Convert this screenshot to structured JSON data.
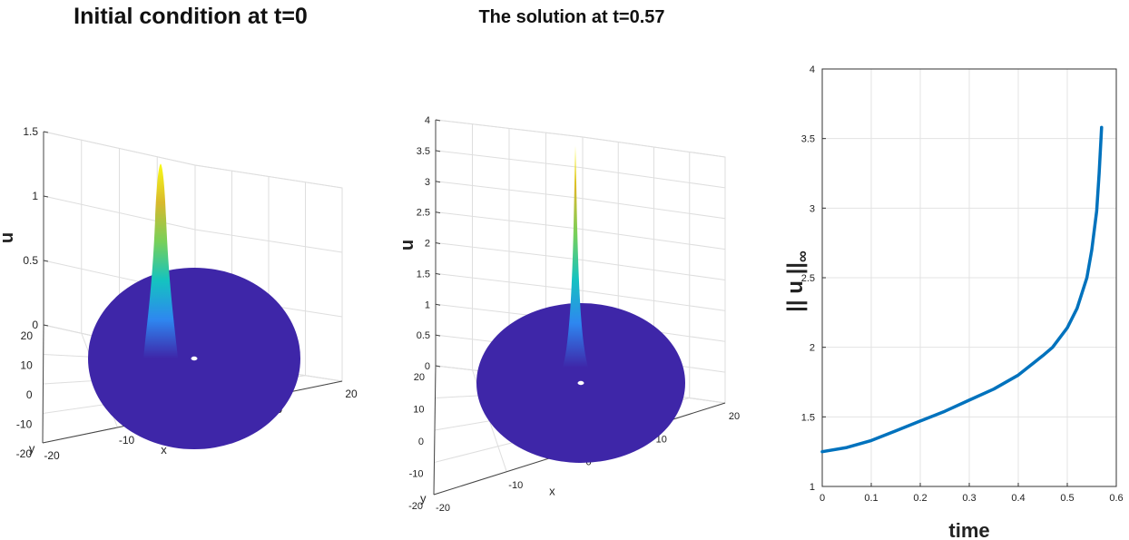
{
  "panels": [
    {
      "title": "Initial condition at t=0",
      "zlabel": "u",
      "xlabel": "x",
      "ylabel": "y",
      "zticks": [
        "0",
        "0.5",
        "1",
        "1.5"
      ],
      "xticks": [
        "-20",
        "-10",
        "0",
        "10",
        "20"
      ],
      "yticks": [
        "20",
        "10",
        "0",
        "-10",
        "-20"
      ],
      "peak": 1.25,
      "zmax": 1.5,
      "colormap": [
        "#3e26a8",
        "#2e87f0",
        "#14c3c0",
        "#77d05a",
        "#d8b92c",
        "#f9fb15"
      ]
    },
    {
      "title": "The solution at t=0.57",
      "zlabel": "u",
      "xlabel": "x",
      "ylabel": "y",
      "zticks": [
        "0",
        "0.5",
        "1",
        "1.5",
        "2",
        "2.5",
        "3",
        "3.5",
        "4"
      ],
      "xticks": [
        "-20",
        "-10",
        "0",
        "10",
        "20"
      ],
      "yticks": [
        "20",
        "10",
        "0",
        "-10",
        "-20"
      ],
      "peak": 3.58,
      "zmax": 4,
      "colormap": [
        "#3e26a8",
        "#2e87f0",
        "#14c3c0",
        "#77d05a",
        "#d8b92c",
        "#f9fb15"
      ]
    }
  ],
  "chart_data": {
    "type": "line",
    "xlabel": "time",
    "ylabel": "|| u ||",
    "ylabel_subscript": "∞",
    "xlim": [
      0,
      0.6
    ],
    "ylim": [
      1,
      4
    ],
    "xticks": [
      "0",
      "0.1",
      "0.2",
      "0.3",
      "0.4",
      "0.5",
      "0.6"
    ],
    "yticks": [
      "1",
      "1.5",
      "2",
      "2.5",
      "3",
      "3.5",
      "4"
    ],
    "grid": true,
    "line_color": "#0072bd",
    "x": [
      0,
      0.05,
      0.1,
      0.15,
      0.2,
      0.25,
      0.3,
      0.35,
      0.4,
      0.45,
      0.47,
      0.5,
      0.52,
      0.54,
      0.55,
      0.56,
      0.565,
      0.57
    ],
    "y": [
      1.25,
      1.28,
      1.33,
      1.4,
      1.47,
      1.54,
      1.62,
      1.7,
      1.8,
      1.94,
      2.0,
      2.14,
      2.28,
      2.5,
      2.7,
      2.98,
      3.25,
      3.58
    ]
  }
}
